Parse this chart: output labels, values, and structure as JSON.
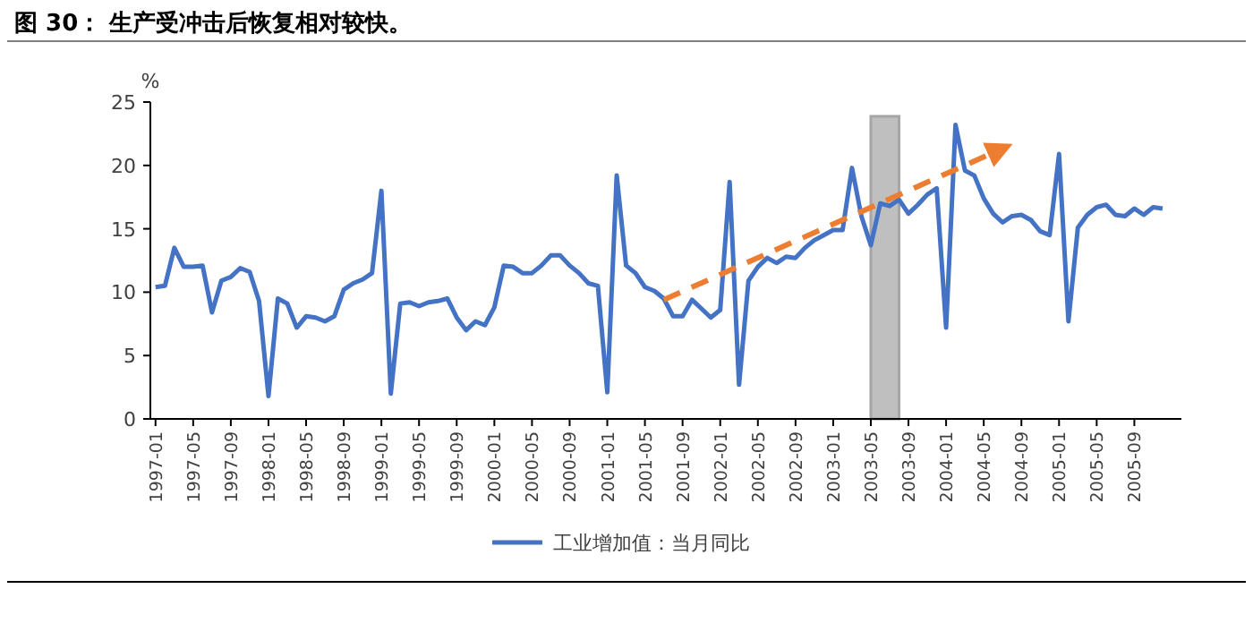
{
  "chart_data": {
    "type": "line",
    "title": "图 30： 生产受冲击后恢复相对较快。",
    "ylabel": "%",
    "ylim": [
      0,
      25
    ],
    "yticks": [
      0,
      5,
      10,
      15,
      20,
      25
    ],
    "xlim": [
      "1996-12-15",
      "2006-02"
    ],
    "xticks": [
      "1997-01",
      "1997-05",
      "1997-09",
      "1998-01",
      "1998-05",
      "1998-09",
      "1999-01",
      "1999-05",
      "1999-09",
      "2000-01",
      "2000-05",
      "2000-09",
      "2001-01",
      "2001-05",
      "2001-09",
      "2002-01",
      "2002-05",
      "2002-09",
      "2003-01",
      "2003-05",
      "2003-09",
      "2004-01",
      "2004-05",
      "2004-09",
      "2005-01",
      "2005-05",
      "2005-09"
    ],
    "legend": "bottom",
    "grid": false,
    "bands": [
      {
        "axis": "x",
        "from": "2003-05",
        "to": "2003-08",
        "color": "#bfbfbf"
      }
    ],
    "series": [
      {
        "name": "工业增加值：当月同比",
        "color": "#4472c4",
        "x": [
          "1997-01",
          "1997-02",
          "1997-03",
          "1997-04",
          "1997-05",
          "1997-06",
          "1997-07",
          "1997-08",
          "1997-09",
          "1997-10",
          "1997-11",
          "1997-12",
          "1998-01",
          "1998-02",
          "1998-03",
          "1998-04",
          "1998-05",
          "1998-06",
          "1998-07",
          "1998-08",
          "1998-09",
          "1998-10",
          "1998-11",
          "1998-12",
          "1999-01",
          "1999-02",
          "1999-03",
          "1999-04",
          "1999-05",
          "1999-06",
          "1999-07",
          "1999-08",
          "1999-09",
          "1999-10",
          "1999-11",
          "1999-12",
          "2000-01",
          "2000-02",
          "2000-03",
          "2000-04",
          "2000-05",
          "2000-06",
          "2000-07",
          "2000-08",
          "2000-09",
          "2000-10",
          "2000-11",
          "2000-12",
          "2001-01",
          "2001-02",
          "2001-03",
          "2001-04",
          "2001-05",
          "2001-06",
          "2001-07",
          "2001-08",
          "2001-09",
          "2001-10",
          "2001-11",
          "2001-12",
          "2002-01",
          "2002-02",
          "2002-03",
          "2002-04",
          "2002-05",
          "2002-06",
          "2002-07",
          "2002-08",
          "2002-09",
          "2002-10",
          "2002-11",
          "2002-12",
          "2003-01",
          "2003-02",
          "2003-03",
          "2003-04",
          "2003-05",
          "2003-06",
          "2003-07",
          "2003-08",
          "2003-09",
          "2003-10",
          "2003-11",
          "2003-12",
          "2004-01",
          "2004-02",
          "2004-03",
          "2004-04",
          "2004-05",
          "2004-06",
          "2004-07",
          "2004-08",
          "2004-09",
          "2004-10",
          "2004-11",
          "2004-12",
          "2005-01",
          "2005-02",
          "2005-03",
          "2005-04",
          "2005-05",
          "2005-06",
          "2005-07",
          "2005-08",
          "2005-09",
          "2005-10",
          "2005-11",
          "2005-12"
        ],
        "values": [
          10.4,
          10.5,
          13.5,
          12.0,
          12.0,
          12.1,
          8.4,
          10.9,
          11.2,
          11.9,
          11.6,
          9.3,
          1.8,
          9.5,
          9.1,
          7.2,
          8.1,
          8.0,
          7.7,
          8.1,
          10.2,
          10.7,
          11.0,
          11.5,
          18.0,
          2.0,
          9.1,
          9.2,
          8.9,
          9.2,
          9.3,
          9.5,
          8.0,
          7.0,
          7.7,
          7.4,
          8.8,
          12.1,
          12.0,
          11.5,
          11.5,
          12.1,
          12.9,
          12.9,
          12.1,
          11.5,
          10.7,
          10.5,
          2.1,
          19.2,
          12.1,
          11.5,
          10.4,
          10.1,
          9.5,
          8.1,
          8.1,
          9.4,
          8.7,
          8.0,
          8.6,
          18.7,
          2.7,
          10.9,
          12.0,
          12.7,
          12.3,
          12.8,
          12.7,
          13.5,
          14.1,
          14.5,
          14.9,
          14.9,
          19.8,
          16.0,
          13.7,
          17.0,
          16.8,
          17.3,
          16.2,
          16.9,
          17.7,
          18.2,
          7.2,
          23.2,
          19.6,
          19.2,
          17.4,
          16.2,
          15.5,
          16.0,
          16.1,
          15.7,
          14.8,
          14.5,
          20.9,
          7.7,
          15.1,
          16.1,
          16.7,
          16.9,
          16.1,
          16.0,
          16.6,
          16.1,
          16.7,
          16.6
        ]
      },
      {
        "type": "line",
        "color": "#ed7d31",
        "line_style": "dashed",
        "x": [
          "2001-07",
          "2004-06"
        ],
        "values": [
          9.4,
          21.0
        ]
      }
    ]
  }
}
